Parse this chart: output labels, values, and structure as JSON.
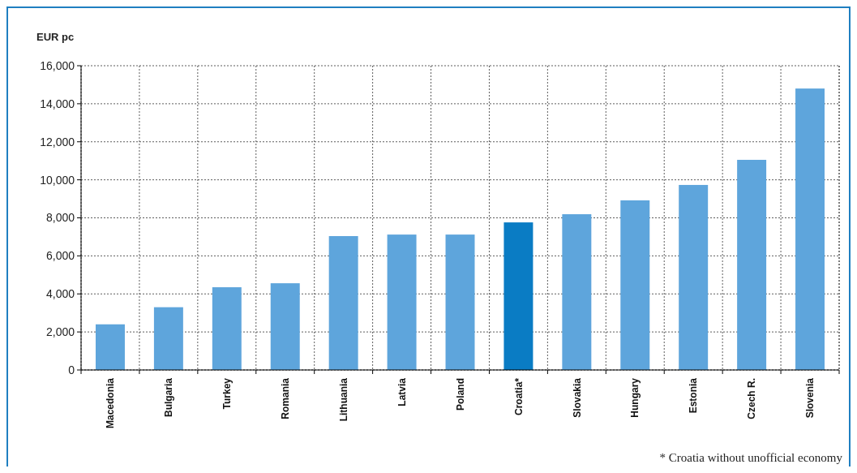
{
  "chart_data": {
    "type": "bar",
    "ylabel": "EUR pc",
    "categories": [
      "Macedonia",
      "Bulgaria",
      "Turkey",
      "Romania",
      "Lithuania",
      "Latvia",
      "Poland",
      "Croatia*",
      "Slovakia",
      "Hungary",
      "Estonia",
      "Czech R.",
      "Slovenia"
    ],
    "values": [
      2400,
      3300,
      4350,
      4560,
      7040,
      7120,
      7120,
      7760,
      8190,
      8920,
      9730,
      11050,
      14800
    ],
    "colors": [
      "#5ea5dc",
      "#5ea5dc",
      "#5ea5dc",
      "#5ea5dc",
      "#5ea5dc",
      "#5ea5dc",
      "#5ea5dc",
      "#0a7cc4",
      "#5ea5dc",
      "#5ea5dc",
      "#5ea5dc",
      "#5ea5dc",
      "#5ea5dc"
    ],
    "ylim": [
      0,
      16000
    ],
    "yticks": [
      {
        "value": 0,
        "label": "0"
      },
      {
        "value": 2000,
        "label": "2,000"
      },
      {
        "value": 4000,
        "label": "4,000"
      },
      {
        "value": 6000,
        "label": "6,000"
      },
      {
        "value": 8000,
        "label": "8,000"
      },
      {
        "value": 10000,
        "label": "10,000"
      },
      {
        "value": 12000,
        "label": "12,000"
      },
      {
        "value": 14000,
        "label": "14,000"
      },
      {
        "value": 16000,
        "label": "16,000"
      }
    ],
    "grid": true,
    "annotations": [
      "* Croatia without unofficial economy"
    ]
  }
}
